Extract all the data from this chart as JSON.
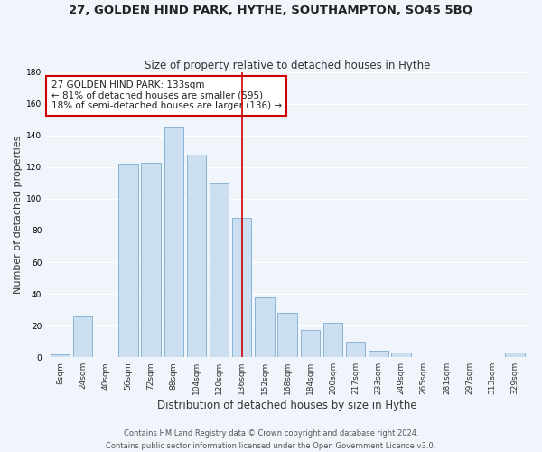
{
  "title": "27, GOLDEN HIND PARK, HYTHE, SOUTHAMPTON, SO45 5BQ",
  "subtitle": "Size of property relative to detached houses in Hythe",
  "xlabel": "Distribution of detached houses by size in Hythe",
  "ylabel": "Number of detached properties",
  "bar_labels": [
    "8sqm",
    "24sqm",
    "40sqm",
    "56sqm",
    "72sqm",
    "88sqm",
    "104sqm",
    "120sqm",
    "136sqm",
    "152sqm",
    "168sqm",
    "184sqm",
    "200sqm",
    "217sqm",
    "233sqm",
    "249sqm",
    "265sqm",
    "281sqm",
    "297sqm",
    "313sqm",
    "329sqm"
  ],
  "bar_values": [
    2,
    26,
    0,
    122,
    123,
    145,
    128,
    110,
    88,
    38,
    28,
    17,
    22,
    10,
    4,
    3,
    0,
    0,
    0,
    0,
    3
  ],
  "bar_color": "#ccdff0",
  "bar_edge_color": "#8ab4d4",
  "vline_x": 8,
  "vline_color": "#cc0000",
  "annotation_box_text": "27 GOLDEN HIND PARK: 133sqm\n← 81% of detached houses are smaller (595)\n18% of semi-detached houses are larger (136) →",
  "annotation_box_facecolor": "#ffffff",
  "annotation_box_edgecolor": "#cc0000",
  "ylim": [
    0,
    180
  ],
  "yticks": [
    0,
    20,
    40,
    60,
    80,
    100,
    120,
    140,
    160,
    180
  ],
  "footer_line1": "Contains HM Land Registry data © Crown copyright and database right 2024.",
  "footer_line2": "Contains public sector information licensed under the Open Government Licence v3.0.",
  "background_color": "#f0f5fc",
  "grid_color": "#ffffff",
  "title_fontsize": 9.5,
  "subtitle_fontsize": 8.5,
  "ylabel_fontsize": 8,
  "xlabel_fontsize": 8.5,
  "tick_fontsize": 6.5,
  "ann_fontsize": 7.5,
  "footer_fontsize": 6.0
}
